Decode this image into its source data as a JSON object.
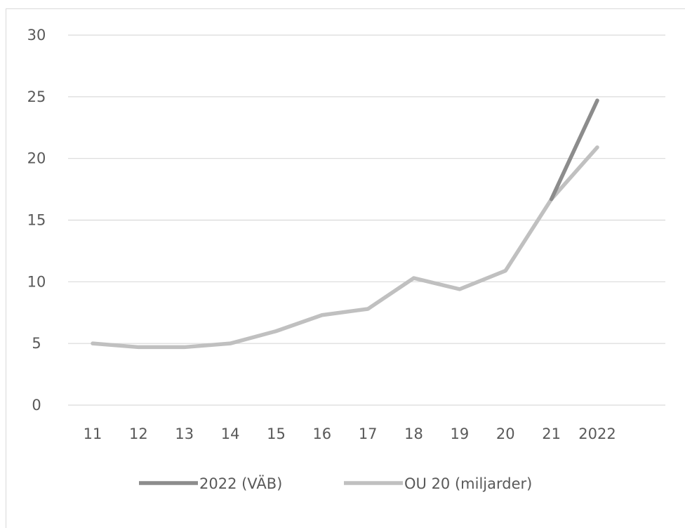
{
  "chart_data": {
    "type": "line",
    "categories": [
      "11",
      "12",
      "13",
      "14",
      "15",
      "16",
      "17",
      "18",
      "19",
      "20",
      "21",
      "2022"
    ],
    "ylim": [
      0,
      30
    ],
    "yticks": [
      "0",
      "5",
      "10",
      "15",
      "20",
      "25",
      "30"
    ],
    "grid": true,
    "legend_position": "bottom",
    "series": [
      {
        "name": "2022 (VÄB)",
        "color": "#8c8c8c",
        "values": [
          null,
          null,
          null,
          null,
          null,
          null,
          null,
          null,
          null,
          null,
          16.7,
          24.7
        ]
      },
      {
        "name": "OU 20 (miljarder)",
        "color": "#c0c0c0",
        "values": [
          5.0,
          4.7,
          4.7,
          5.0,
          6.0,
          7.3,
          7.8,
          10.3,
          9.4,
          10.9,
          16.7,
          20.9
        ]
      }
    ]
  }
}
